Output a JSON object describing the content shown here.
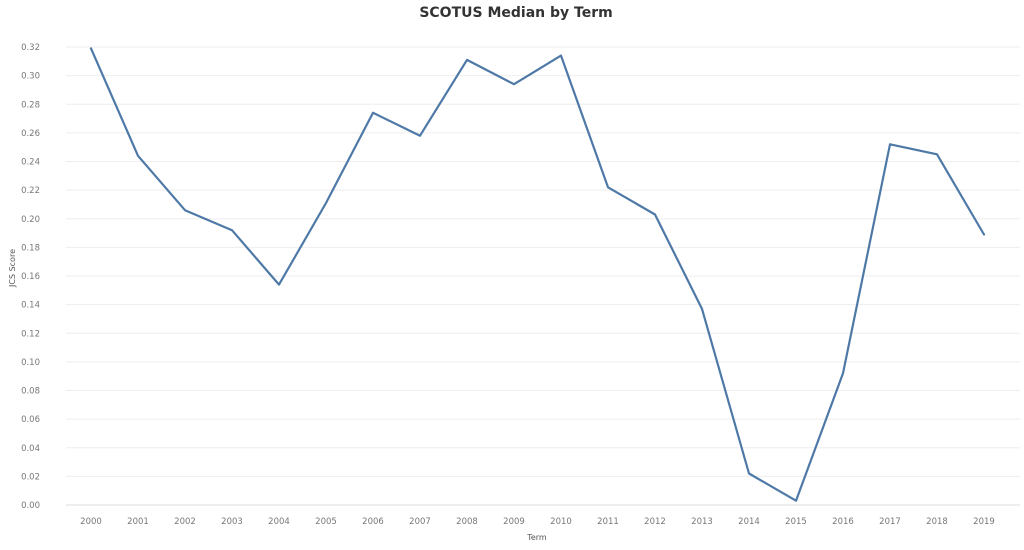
{
  "chart_data": {
    "type": "line",
    "title": "SCOTUS Median by Term",
    "xlabel": "Term",
    "ylabel": "JCS Score",
    "categories": [
      "2000",
      "2001",
      "2002",
      "2003",
      "2004",
      "2005",
      "2006",
      "2007",
      "2008",
      "2009",
      "2010",
      "2011",
      "2012",
      "2013",
      "2014",
      "2015",
      "2016",
      "2017",
      "2018",
      "2019"
    ],
    "series": [
      {
        "values": [
          0.319,
          0.244,
          0.206,
          0.192,
          0.154,
          0.211,
          0.274,
          0.258,
          0.311,
          0.294,
          0.314,
          0.222,
          0.203,
          0.137,
          0.022,
          0.003,
          0.092,
          0.252,
          0.245,
          0.189
        ]
      }
    ],
    "ylim": [
      0.0,
      0.32
    ],
    "yticks": [
      "0.00",
      "0.02",
      "0.04",
      "0.06",
      "0.08",
      "0.10",
      "0.12",
      "0.14",
      "0.16",
      "0.18",
      "0.20",
      "0.22",
      "0.24",
      "0.26",
      "0.28",
      "0.30",
      "0.32"
    ],
    "grid": true,
    "line_color": "#4e79a7"
  }
}
